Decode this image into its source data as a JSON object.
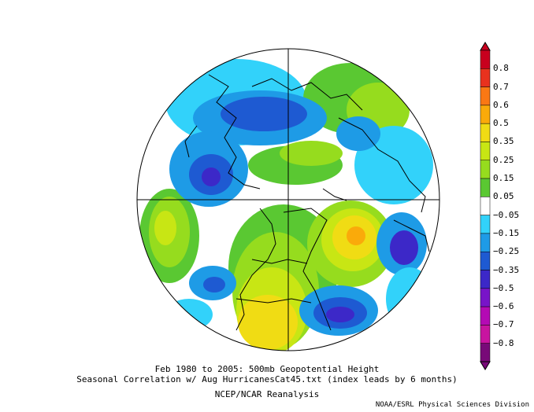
{
  "title_line1": "Feb 1980 to 2005: 500mb Geopotential Height",
  "title_line2": "Seasonal Correlation w/ Aug HurricanesCat45.txt (index leads by 6 months)",
  "title_line3": "NCEP/NCAR Reanalysis",
  "credit": "NOAA/ESRL Physical Sciences Division",
  "colorbar": {
    "labels": [
      "0.8",
      "0.7",
      "0.6",
      "0.5",
      "0.35",
      "0.25",
      "0.15",
      "0.05",
      "−0.05",
      "−0.15",
      "−0.25",
      "−0.35",
      "−0.5",
      "−0.6",
      "−0.7",
      "−0.8"
    ],
    "colors": [
      "#c8001e",
      "#e8321e",
      "#fa7814",
      "#faaa0a",
      "#f0dc14",
      "#c8e614",
      "#96dc1e",
      "#5ac832",
      "#ffffff",
      "#32d2fa",
      "#1e9be6",
      "#1e5ad2",
      "#3c28c8",
      "#7814c8",
      "#b40ab4",
      "#c814a0",
      "#780a78"
    ]
  }
}
